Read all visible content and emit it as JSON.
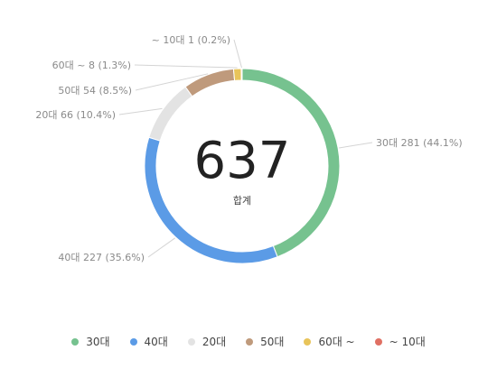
{
  "center": {
    "total": "637",
    "label": "합계"
  },
  "chart_data": {
    "type": "pie",
    "variant": "donut",
    "categories": [
      "30대",
      "40대",
      "20대",
      "50대",
      "60대 ~",
      "~ 10대"
    ],
    "values": [
      281,
      227,
      66,
      54,
      8,
      1
    ],
    "percent_labels": [
      "44.1%",
      "35.6%",
      "10.4%",
      "8.5%",
      "1.3%",
      "0.2%"
    ],
    "slice_labels": [
      "30대 281 (44.1%)",
      "40대 227 (35.6%)",
      "20대 66 (10.4%)",
      "50대 54 (8.5%)",
      "60대 ~ 8 (1.3%)",
      "~ 10대 1 (0.2%)"
    ],
    "colors": [
      "#76c28f",
      "#5b9be6",
      "#e3e3e3",
      "#bf9a7c",
      "#e8c45a",
      "#e07063"
    ],
    "legend_position": "bottom"
  }
}
